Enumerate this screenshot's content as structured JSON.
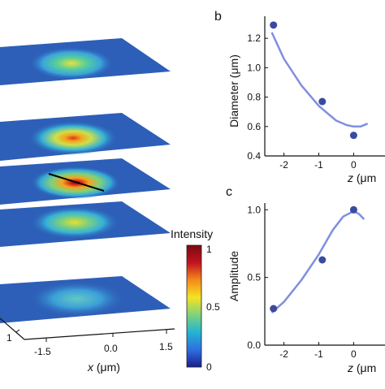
{
  "figure": {
    "colorbar": {
      "title": "Intensity",
      "ticks": [
        "1",
        "0.5",
        "0"
      ],
      "stops": [
        "#1a1f8f",
        "#2f6fe0",
        "#23b4d4",
        "#7fd27b",
        "#f4e321",
        "#f58a1b",
        "#c1121f",
        "#7a0a12"
      ]
    },
    "left_axes": {
      "x_label_var": "x",
      "x_label_unit": " (μm)",
      "x_ticks": [
        "-1.5",
        "0.0",
        "1.5"
      ],
      "y_tick": "1"
    },
    "colors": {
      "curve": "#7f8fe0",
      "marker": "#3a4aa0",
      "plane_bg": "#2d5fb8"
    }
  },
  "chart_data": [
    {
      "panel_label": "b",
      "type": "scatter",
      "xlabel_var": "z",
      "xlabel_unit": " (μm",
      "ylabel": "Diameter (μm)",
      "x_ticks": [
        "-2",
        "-1",
        "0"
      ],
      "y_ticks": [
        "1.2",
        "1.0",
        "0.8",
        "0.6",
        "0.4"
      ],
      "xlim": [
        -2.55,
        0.9
      ],
      "ylim": [
        0.4,
        1.35
      ],
      "points": [
        {
          "x": -2.3,
          "y": 1.29
        },
        {
          "x": -0.9,
          "y": 0.77
        },
        {
          "x": 0.0,
          "y": 0.54
        }
      ],
      "fit": {
        "x": [
          -2.35,
          -2.0,
          -1.5,
          -1.0,
          -0.5,
          -0.2,
          0.0,
          0.2,
          0.4
        ],
        "y": [
          1.24,
          1.06,
          0.88,
          0.74,
          0.64,
          0.61,
          0.6,
          0.6,
          0.62
        ]
      }
    },
    {
      "panel_label": "c",
      "type": "scatter",
      "xlabel_var": "z",
      "xlabel_unit": " (μm",
      "ylabel": "Amplitude",
      "x_ticks": [
        "-2",
        "-1",
        "0"
      ],
      "y_ticks": [
        "1.0",
        "0.5",
        "0.0"
      ],
      "xlim": [
        -2.55,
        0.9
      ],
      "ylim": [
        0,
        1.05
      ],
      "points": [
        {
          "x": -2.3,
          "y": 0.27
        },
        {
          "x": -0.9,
          "y": 0.63
        },
        {
          "x": 0.0,
          "y": 1.0
        }
      ],
      "fit": {
        "x": [
          -2.35,
          -2.0,
          -1.5,
          -1.0,
          -0.6,
          -0.3,
          0.0,
          0.15,
          0.3
        ],
        "y": [
          0.24,
          0.32,
          0.48,
          0.67,
          0.85,
          0.95,
          0.99,
          0.97,
          0.93
        ]
      }
    }
  ]
}
